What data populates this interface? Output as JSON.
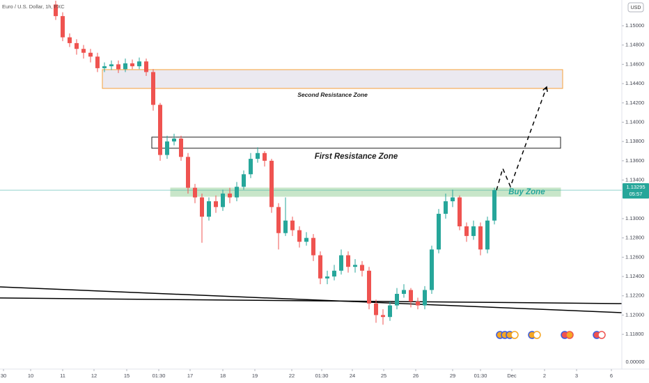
{
  "chart_data": {
    "type": "candlestick",
    "title": "Euro / U.S. Dollar, 1h, FXC",
    "currency": "USD",
    "lower_pane_label": "0.00000",
    "up_color": "#26a69a",
    "down_color": "#ef5350",
    "xlim": [
      0,
      89.3
    ],
    "ylim": [
      1.1144,
      1.15267
    ],
    "x": [
      8,
      9,
      10,
      11,
      12,
      13,
      14,
      15,
      16,
      17,
      18,
      19,
      20,
      21,
      22,
      23,
      24,
      25,
      26,
      27,
      28,
      29,
      30,
      31,
      32,
      33,
      34,
      35,
      36,
      37,
      38,
      39,
      40,
      41,
      42,
      43,
      44,
      45,
      46,
      47,
      48,
      49,
      50,
      51,
      52,
      53,
      54,
      55,
      56,
      57,
      58,
      59,
      60,
      61,
      62,
      63,
      64,
      65,
      66,
      67,
      68,
      69,
      70,
      71
    ],
    "open": [
      1.1522,
      1.151,
      1.1488,
      1.1482,
      1.1476,
      1.1472,
      1.1468,
      1.1456,
      1.1458,
      1.146,
      1.1455,
      1.1461,
      1.1458,
      1.1463,
      1.1452,
      1.1418,
      1.1366,
      1.138,
      1.1383,
      1.1364,
      1.1332,
      1.1322,
      1.1302,
      1.1318,
      1.1312,
      1.1326,
      1.1322,
      1.1333,
      1.1346,
      1.1362,
      1.1368,
      1.136,
      1.1312,
      1.1285,
      1.1298,
      1.1288,
      1.1276,
      1.128,
      1.1262,
      1.1238,
      1.124,
      1.1246,
      1.1262,
      1.125,
      1.1252,
      1.1246,
      1.1212,
      1.12,
      1.1198,
      1.121,
      1.1222,
      1.1226,
      1.1214,
      1.121,
      1.1226,
      1.1268,
      1.1305,
      1.1318,
      1.1322,
      1.1292,
      1.1282,
      1.1292,
      1.1268,
      1.1298
    ],
    "high": [
      1.1526,
      1.1514,
      1.1492,
      1.1486,
      1.148,
      1.1476,
      1.1472,
      1.1462,
      1.1464,
      1.1464,
      1.1466,
      1.1465,
      1.1467,
      1.1466,
      1.1455,
      1.142,
      1.1386,
      1.1388,
      1.1386,
      1.1368,
      1.1336,
      1.1326,
      1.1322,
      1.1324,
      1.133,
      1.1332,
      1.1338,
      1.135,
      1.1368,
      1.1374,
      1.137,
      1.1362,
      1.1316,
      1.1322,
      1.1302,
      1.1292,
      1.1286,
      1.1284,
      1.1266,
      1.1246,
      1.1252,
      1.1268,
      1.1266,
      1.1258,
      1.1256,
      1.125,
      1.1216,
      1.1206,
      1.1214,
      1.1228,
      1.1232,
      1.1228,
      1.1218,
      1.123,
      1.1272,
      1.131,
      1.1326,
      1.133,
      1.1324,
      1.1296,
      1.1298,
      1.1296,
      1.1302,
      1.1332
    ],
    "low": [
      1.1506,
      1.1484,
      1.1478,
      1.147,
      1.1466,
      1.1462,
      1.1452,
      1.1452,
      1.1454,
      1.1451,
      1.1452,
      1.1455,
      1.1455,
      1.1448,
      1.1412,
      1.136,
      1.1362,
      1.1376,
      1.136,
      1.1326,
      1.1316,
      1.1275,
      1.1298,
      1.1306,
      1.1308,
      1.1316,
      1.1318,
      1.133,
      1.1342,
      1.1358,
      1.1354,
      1.1306,
      1.1268,
      1.1282,
      1.1282,
      1.127,
      1.1272,
      1.1256,
      1.1232,
      1.1232,
      1.1236,
      1.1242,
      1.1244,
      1.1244,
      1.124,
      1.1206,
      1.1192,
      1.119,
      1.1194,
      1.1206,
      1.1218,
      1.1208,
      1.1206,
      1.1206,
      1.1222,
      1.1264,
      1.13,
      1.1312,
      1.1288,
      1.1276,
      1.1278,
      1.1262,
      1.1264,
      1.1294
    ],
    "close": [
      1.151,
      1.1488,
      1.1482,
      1.1476,
      1.1472,
      1.1468,
      1.1456,
      1.1458,
      1.146,
      1.1455,
      1.1461,
      1.1458,
      1.1463,
      1.1452,
      1.1418,
      1.1366,
      1.138,
      1.1383,
      1.1364,
      1.1332,
      1.1322,
      1.1302,
      1.1318,
      1.1312,
      1.1326,
      1.1322,
      1.1333,
      1.1346,
      1.1362,
      1.1368,
      1.136,
      1.1312,
      1.1285,
      1.1298,
      1.1288,
      1.1276,
      1.128,
      1.1262,
      1.1238,
      1.124,
      1.1246,
      1.1262,
      1.125,
      1.1252,
      1.1246,
      1.1212,
      1.12,
      1.1198,
      1.121,
      1.1222,
      1.1226,
      1.1214,
      1.121,
      1.1226,
      1.1268,
      1.1305,
      1.1318,
      1.1322,
      1.1292,
      1.1282,
      1.1292,
      1.1268,
      1.1298,
      1.13295
    ],
    "yticks": [
      {
        "value": 1.15,
        "label": "1.15000"
      },
      {
        "value": 1.148,
        "label": "1.14800"
      },
      {
        "value": 1.146,
        "label": "1.14600"
      },
      {
        "value": 1.144,
        "label": "1.14400"
      },
      {
        "value": 1.142,
        "label": "1.14200"
      },
      {
        "value": 1.14,
        "label": "1.14000"
      },
      {
        "value": 1.138,
        "label": "1.13800"
      },
      {
        "value": 1.136,
        "label": "1.13600"
      },
      {
        "value": 1.134,
        "label": "1.13400"
      },
      {
        "value": 1.13,
        "label": "1.13000"
      },
      {
        "value": 1.128,
        "label": "1.12800"
      },
      {
        "value": 1.126,
        "label": "1.12600"
      },
      {
        "value": 1.124,
        "label": "1.12400"
      },
      {
        "value": 1.122,
        "label": "1.12200"
      },
      {
        "value": 1.12,
        "label": "1.12000"
      },
      {
        "value": 1.118,
        "label": "1.11800"
      }
    ],
    "xticks": [
      {
        "value": 0.5,
        "label": "30"
      },
      {
        "value": 4.4,
        "label": "10"
      },
      {
        "value": 9,
        "label": "11"
      },
      {
        "value": 13.5,
        "label": "12"
      },
      {
        "value": 18.2,
        "label": "15"
      },
      {
        "value": 22.8,
        "label": "01:30"
      },
      {
        "value": 27.3,
        "label": "17"
      },
      {
        "value": 32,
        "label": "18"
      },
      {
        "value": 36.6,
        "label": "19"
      },
      {
        "value": 41.9,
        "label": "22"
      },
      {
        "value": 46.2,
        "label": "01:30"
      },
      {
        "value": 50.6,
        "label": "24"
      },
      {
        "value": 55.1,
        "label": "25"
      },
      {
        "value": 59.7,
        "label": "26"
      },
      {
        "value": 65,
        "label": "29"
      },
      {
        "value": 69,
        "label": "01:30"
      },
      {
        "value": 73.5,
        "label": "Dec"
      },
      {
        "value": 78.2,
        "label": "2"
      },
      {
        "value": 82.8,
        "label": "3"
      },
      {
        "value": 87.8,
        "label": "6"
      }
    ],
    "last_price": {
      "value": 1.13295,
      "label": "1.13295",
      "countdown": "05:57",
      "color": "#26a69a"
    },
    "zones": [
      {
        "label": "Second Resistance Zone",
        "x": [
          14.7,
          80.8
        ],
        "values": [
          1.1435,
          1.14545
        ],
        "color": "#f7a13a",
        "fill": "#ebe9f0",
        "label_color": "#1e1e1e"
      },
      {
        "label": "First Resistance Zone",
        "x": [
          21.8,
          80.5
        ],
        "values": [
          1.1373,
          1.13845
        ],
        "color": "#1e1e1e",
        "fill": "#ffffff",
        "label_color": "#1e1e1e"
      },
      {
        "label": "Buy Zone",
        "x": [
          24.5,
          80.5
        ],
        "values": [
          1.13231,
          1.13318
        ],
        "color": "#c8e6c9",
        "fill": "#c8e6c9",
        "label_color": "#26a69a"
      }
    ],
    "trendlines": [
      {
        "x": [
          0,
          89.3
        ],
        "values": [
          1.12292,
          1.12025
        ],
        "color": "#000000"
      },
      {
        "x": [
          0,
          89.3
        ],
        "values": [
          1.12177,
          1.12119
        ],
        "color": "#000000"
      }
    ],
    "projection": {
      "x": [
        71.3,
        72.2,
        73.3,
        78.5
      ],
      "values": [
        1.13295,
        1.1352,
        1.13332,
        1.14365
      ],
      "color": "#000000"
    }
  }
}
